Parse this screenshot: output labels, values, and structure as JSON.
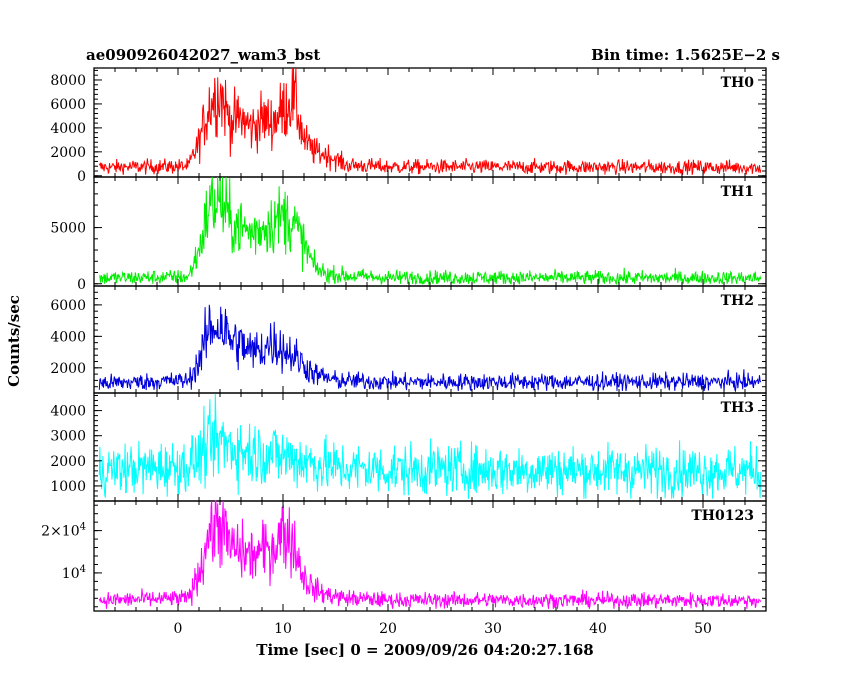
{
  "header": {
    "title": "ae090926042027_wam3_bst",
    "bin_time": "Bin time: 1.5625E−2 s"
  },
  "chart_data": {
    "type": "line",
    "ylabel": "Counts/sec",
    "xlabel": "Time [sec] 0 = 2009/09/26 04:20:27.168",
    "xlim": [
      -8,
      56
    ],
    "xticks": [
      0,
      10,
      20,
      30,
      40,
      50
    ],
    "panels": [
      {
        "name": "TH0",
        "color": "#ff0000",
        "ylim": [
          -100,
          9000
        ],
        "yticks": [
          {
            "v": 0,
            "label": "0"
          },
          {
            "v": 2000,
            "label": "2000"
          },
          {
            "v": 4000,
            "label": "4000"
          },
          {
            "v": 6000,
            "label": "6000"
          },
          {
            "v": 8000,
            "label": "8000"
          }
        ],
        "background": 700,
        "noise": 650,
        "profile": [
          [
            -8,
            700
          ],
          [
            1,
            800
          ],
          [
            2,
            2800
          ],
          [
            3,
            6000
          ],
          [
            4,
            7000
          ],
          [
            5,
            4500
          ],
          [
            6,
            4800
          ],
          [
            7,
            4000
          ],
          [
            8,
            4700
          ],
          [
            9,
            4500
          ],
          [
            10,
            5500
          ],
          [
            11,
            6800
          ],
          [
            12,
            3000
          ],
          [
            13,
            2000
          ],
          [
            14,
            1800
          ],
          [
            15,
            1400
          ],
          [
            16,
            900
          ],
          [
            20,
            750
          ],
          [
            56,
            700
          ]
        ]
      },
      {
        "name": "TH1",
        "color": "#00ee00",
        "ylim": [
          -200,
          9500
        ],
        "yticks": [
          {
            "v": 0,
            "label": "0"
          },
          {
            "v": 5000,
            "label": "5000"
          }
        ],
        "background": 500,
        "noise": 700,
        "profile": [
          [
            -8,
            500
          ],
          [
            1,
            600
          ],
          [
            2,
            3000
          ],
          [
            3,
            7000
          ],
          [
            4,
            7500
          ],
          [
            5,
            5500
          ],
          [
            6,
            5000
          ],
          [
            7,
            4500
          ],
          [
            8,
            5000
          ],
          [
            9,
            5500
          ],
          [
            10,
            6000
          ],
          [
            11,
            5500
          ],
          [
            12,
            3500
          ],
          [
            13,
            1500
          ],
          [
            14,
            900
          ],
          [
            16,
            700
          ],
          [
            20,
            550
          ],
          [
            56,
            500
          ]
        ]
      },
      {
        "name": "TH2",
        "color": "#0000dd",
        "ylim": [
          400,
          7200
        ],
        "yticks": [
          {
            "v": 2000,
            "label": "2000"
          },
          {
            "v": 4000,
            "label": "4000"
          },
          {
            "v": 6000,
            "label": "6000"
          }
        ],
        "background": 1100,
        "noise": 600,
        "profile": [
          [
            -8,
            1000
          ],
          [
            1,
            1200
          ],
          [
            2,
            2400
          ],
          [
            3,
            4500
          ],
          [
            4,
            4800
          ],
          [
            5,
            3800
          ],
          [
            6,
            3500
          ],
          [
            7,
            3000
          ],
          [
            8,
            3200
          ],
          [
            9,
            3600
          ],
          [
            10,
            3200
          ],
          [
            11,
            2800
          ],
          [
            12,
            2200
          ],
          [
            13,
            1600
          ],
          [
            15,
            1200
          ],
          [
            20,
            1100
          ],
          [
            56,
            1100
          ]
        ]
      },
      {
        "name": "TH3",
        "color": "#00ffff",
        "ylim": [
          400,
          4700
        ],
        "yticks": [
          {
            "v": 1000,
            "label": "1000"
          },
          {
            "v": 2000,
            "label": "2000"
          },
          {
            "v": 3000,
            "label": "3000"
          },
          {
            "v": 4000,
            "label": "4000"
          }
        ],
        "background": 1600,
        "noise": 1100,
        "profile": [
          [
            -8,
            1600
          ],
          [
            1,
            1800
          ],
          [
            3,
            2600
          ],
          [
            4,
            2800
          ],
          [
            6,
            2400
          ],
          [
            8,
            2300
          ],
          [
            10,
            2200
          ],
          [
            12,
            2000
          ],
          [
            14,
            1800
          ],
          [
            16,
            1700
          ],
          [
            20,
            1650
          ],
          [
            56,
            1600
          ]
        ]
      },
      {
        "name": "TH0123",
        "color": "#ff00ff",
        "ylim": [
          1000,
          27000
        ],
        "yticks": [
          {
            "v": 10000,
            "label": "10⁴",
            "mant": "",
            "exp": "4"
          },
          {
            "v": 20000,
            "label": "2×10⁴",
            "mant": "2×",
            "exp": "4"
          }
        ],
        "background": 3500,
        "noise": 2000,
        "profile": [
          [
            -8,
            3500
          ],
          [
            1,
            4000
          ],
          [
            2,
            10000
          ],
          [
            3,
            20000
          ],
          [
            4,
            22000
          ],
          [
            5,
            16000
          ],
          [
            6,
            15000
          ],
          [
            7,
            14000
          ],
          [
            8,
            15000
          ],
          [
            9,
            16000
          ],
          [
            10,
            20000
          ],
          [
            11,
            17000
          ],
          [
            12,
            9000
          ],
          [
            13,
            6000
          ],
          [
            14,
            5000
          ],
          [
            16,
            4000
          ],
          [
            20,
            3600
          ],
          [
            56,
            3500
          ]
        ]
      }
    ]
  }
}
